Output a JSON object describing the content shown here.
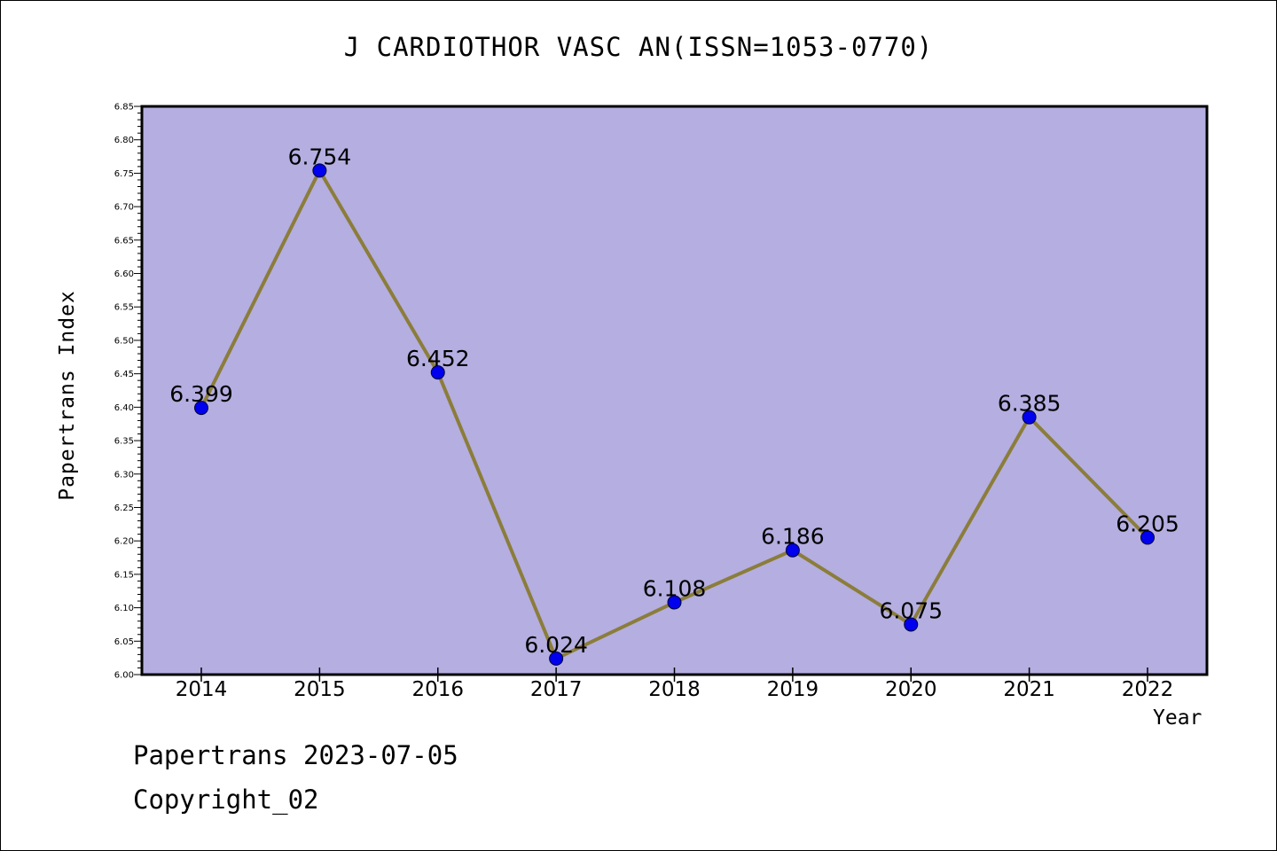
{
  "title": "J CARDIOTHOR VASC AN(ISSN=1053-0770)",
  "footer": {
    "date_line": "Papertrans 2023-07-05",
    "copyright": "Copyright_02"
  },
  "colors": {
    "plot_background": "#b4aee1",
    "line": "#8b7d3a",
    "marker": "#0000ee",
    "axes": "#000000"
  },
  "chart_data": {
    "type": "line",
    "title": "J CARDIOTHOR VASC AN(ISSN=1053-0770)",
    "xlabel": "Year",
    "ylabel": "Papertrans Index",
    "categories": [
      "2014",
      "2015",
      "2016",
      "2017",
      "2018",
      "2019",
      "2020",
      "2021",
      "2022"
    ],
    "series": [
      {
        "values": [
          6.399,
          6.754,
          6.452,
          6.024,
          6.108,
          6.186,
          6.075,
          6.385,
          6.205
        ],
        "labels": [
          "6.399",
          "6.754",
          "6.452",
          "6.024",
          "6.108",
          "6.186",
          "6.075",
          "6.385",
          "6.205"
        ]
      }
    ],
    "ylim": [
      6.0,
      6.85
    ],
    "yticks": [
      "6.00",
      "6.05",
      "6.10",
      "6.15",
      "6.20",
      "6.25",
      "6.30",
      "6.35",
      "6.40",
      "6.45",
      "6.50",
      "6.55",
      "6.60",
      "6.65",
      "6.70",
      "6.75",
      "6.80",
      "6.85"
    ],
    "grid": false,
    "legend": "none"
  }
}
